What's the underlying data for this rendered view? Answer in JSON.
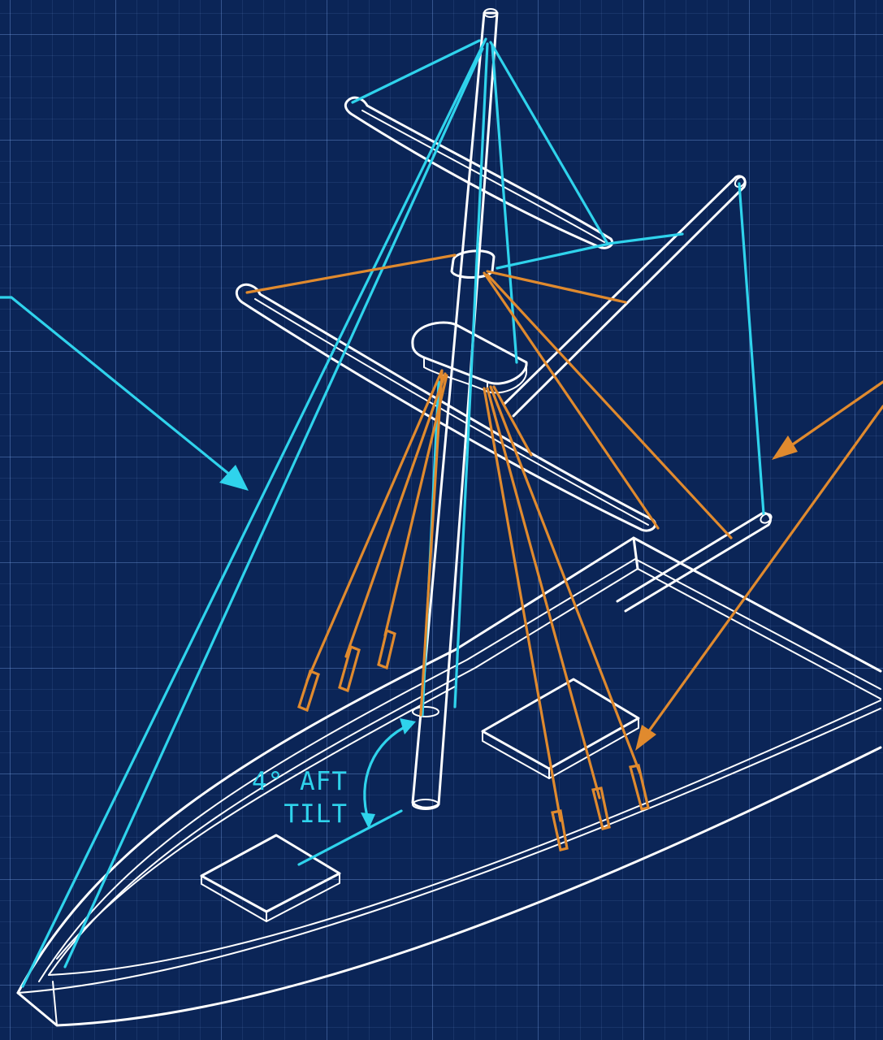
{
  "annotations": {
    "tilt_label_line1": "4° AFT",
    "tilt_label_line2": "TILT"
  },
  "colors": {
    "background": "#0b2557",
    "grid": "#7aa0e6",
    "structure": "#ffffff",
    "cyan_rigging": "#2fd3ec",
    "orange_rigging": "#e08a2e"
  },
  "icons": {
    "tilt_arrow": "curved-double-arrow-icon",
    "pointer_left": "arrow-icon",
    "pointer_right": "arrow-icon"
  }
}
